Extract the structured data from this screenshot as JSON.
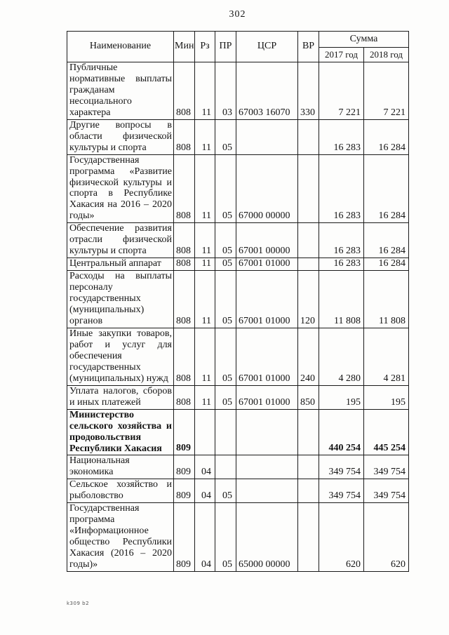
{
  "page": {
    "number": "302",
    "footer_note": "k309 b2"
  },
  "table": {
    "headers": {
      "name": "Наименование",
      "min": "Мин",
      "rz": "Рз",
      "pr": "ПР",
      "csr": "ЦСР",
      "vr": "ВР",
      "sum": "Сумма",
      "year1": "2017 год",
      "year2": "2018 год"
    },
    "rows": [
      {
        "name": "Публичные нормативные выплаты гражданам несоциального характера",
        "min": "808",
        "rz": "11",
        "pr": "03",
        "csr": "67003 16070",
        "vr": "330",
        "y2017": "7 221",
        "y2018": "7 221",
        "bold": false
      },
      {
        "name": "Другие вопросы в области физической культуры и спорта",
        "min": "808",
        "rz": "11",
        "pr": "05",
        "csr": "",
        "vr": "",
        "y2017": "16 283",
        "y2018": "16 284",
        "bold": false
      },
      {
        "name": "Государственная программа «Развитие физической культуры и спорта в Республике Хакасия на 2016 – 2020 годы»",
        "min": "808",
        "rz": "11",
        "pr": "05",
        "csr": "67000 00000",
        "vr": "",
        "y2017": "16 283",
        "y2018": "16 284",
        "bold": false
      },
      {
        "name": "Обеспечение развития отрасли физической культуры и спорта",
        "min": "808",
        "rz": "11",
        "pr": "05",
        "csr": "67001 00000",
        "vr": "",
        "y2017": "16 283",
        "y2018": "16 284",
        "bold": false
      },
      {
        "name": "Центральный аппарат",
        "min": "808",
        "rz": "11",
        "pr": "05",
        "csr": "67001 01000",
        "vr": "",
        "y2017": "16 283",
        "y2018": "16 284",
        "bold": false
      },
      {
        "name": "Расходы на выплаты персоналу государственных (муниципальных) органов",
        "min": "808",
        "rz": "11",
        "pr": "05",
        "csr": "67001 01000",
        "vr": "120",
        "y2017": "11 808",
        "y2018": "11 808",
        "bold": false
      },
      {
        "name": "Иные закупки товаров, работ и услуг для обеспечения государственных (муниципальных) нужд",
        "min": "808",
        "rz": "11",
        "pr": "05",
        "csr": "67001 01000",
        "vr": "240",
        "y2017": "4 280",
        "y2018": "4 281",
        "bold": false
      },
      {
        "name": "Уплата налогов, сборов и иных платежей",
        "min": "808",
        "rz": "11",
        "pr": "05",
        "csr": "67001 01000",
        "vr": "850",
        "y2017": "195",
        "y2018": "195",
        "bold": false
      },
      {
        "name": "Министерство сельского хозяйства и продовольствия Республики Хакасия",
        "min": "809",
        "rz": "",
        "pr": "",
        "csr": "",
        "vr": "",
        "y2017": "440 254",
        "y2018": "445 254",
        "bold": true
      },
      {
        "name": "Национальная экономика",
        "min": "809",
        "rz": "04",
        "pr": "",
        "csr": "",
        "vr": "",
        "y2017": "349 754",
        "y2018": "349 754",
        "bold": false
      },
      {
        "name": "Сельское хозяйство и рыболовство",
        "min": "809",
        "rz": "04",
        "pr": "05",
        "csr": "",
        "vr": "",
        "y2017": "349 754",
        "y2018": "349 754",
        "bold": false
      },
      {
        "name": "Государственная программа «Информационное общество Республики Хакасия (2016 – 2020 годы)»",
        "min": "809",
        "rz": "04",
        "pr": "05",
        "csr": "65000 00000",
        "vr": "",
        "y2017": "620",
        "y2018": "620",
        "bold": false
      }
    ]
  }
}
